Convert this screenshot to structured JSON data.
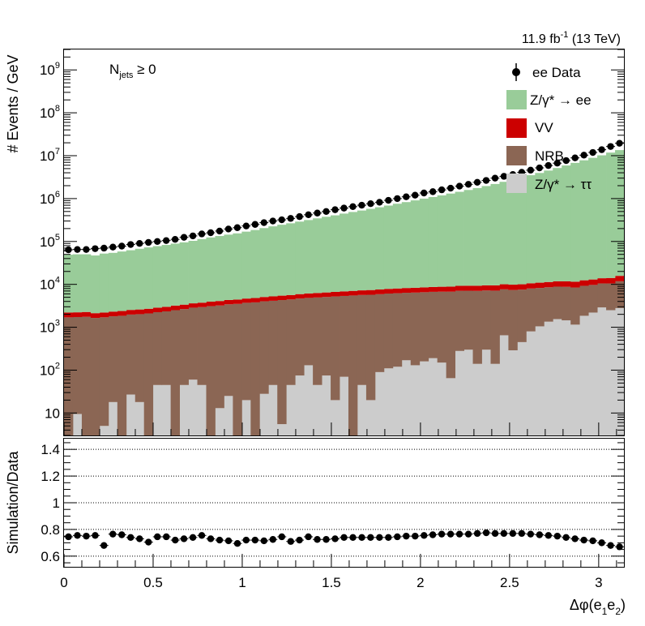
{
  "lumi_label": {
    "value": "11.9 fb",
    "sup": "-1",
    "tail": " (13 TeV)"
  },
  "selection_label": {
    "main": "N",
    "sub": "jets",
    "tail": " ≥ 0"
  },
  "legend": [
    {
      "key": "data",
      "label": "ee Data"
    },
    {
      "key": "dy_ee",
      "label": "Z/γ* → ee"
    },
    {
      "key": "vv",
      "label": "VV"
    },
    {
      "key": "nrb",
      "label": "NRB"
    },
    {
      "key": "dy_tautau",
      "label": "Z/γ* → ττ"
    }
  ],
  "chart_data": [
    {
      "type": "bar",
      "stacked": true,
      "ylabel": "# Events / GeV",
      "xlim": [
        0,
        3.1416
      ],
      "ylim": [
        3,
        3000000000
      ],
      "ylog": true,
      "y_ticks": [
        {
          "value": 10,
          "base": "10",
          "exp": ""
        },
        {
          "value": 100,
          "base": "10",
          "exp": "2"
        },
        {
          "value": 1000,
          "base": "10",
          "exp": "3"
        },
        {
          "value": 10000,
          "base": "10",
          "exp": "4"
        },
        {
          "value": 100000,
          "base": "10",
          "exp": "5"
        },
        {
          "value": 1000000,
          "base": "10",
          "exp": "6"
        },
        {
          "value": 10000000,
          "base": "10",
          "exp": "7"
        },
        {
          "value": 100000000,
          "base": "10",
          "exp": "8"
        },
        {
          "value": 1000000000,
          "base": "10",
          "exp": "9"
        }
      ],
      "n_bins": 63,
      "colors": {
        "dy_ee": "#99cc99",
        "vv": "#cc0000",
        "nrb": "#8b6654",
        "dy_tautau": "#cccccc",
        "data": "#000000"
      },
      "series": [
        {
          "key": "dy_tautau",
          "values": [
            0,
            9.5,
            0,
            0,
            5,
            18,
            0,
            27,
            18,
            0,
            45,
            45,
            0,
            45,
            60,
            45,
            0,
            13,
            25,
            0,
            20,
            0,
            28,
            45,
            5.5,
            45,
            75,
            130,
            45,
            75,
            20,
            70,
            0,
            45,
            20,
            90,
            110,
            120,
            170,
            130,
            160,
            190,
            150,
            65,
            280,
            300,
            140,
            300,
            140,
            650,
            290,
            450,
            800,
            1050,
            1350,
            1550,
            1450,
            1150,
            1850,
            2200,
            2900,
            2500,
            2800
          ]
        },
        {
          "key": "nrb",
          "values": [
            1700,
            1720,
            1750,
            1650,
            1700,
            1780,
            1850,
            1950,
            2000,
            2100,
            2200,
            2300,
            2500,
            2600,
            2800,
            2900,
            3100,
            3200,
            3400,
            3500,
            3700,
            3800,
            4000,
            4100,
            4300,
            4400,
            4600,
            4700,
            4900,
            5000,
            5200,
            5300,
            5500,
            5600,
            5700,
            5800,
            6000,
            6100,
            6200,
            6300,
            6400,
            6500,
            6600,
            6700,
            6800,
            6800,
            6900,
            6900,
            7000,
            7000,
            7100,
            7100,
            7200,
            7200,
            7200,
            7300,
            7300,
            7300,
            7400,
            7500,
            7600,
            8000,
            9000
          ]
        },
        {
          "key": "vv",
          "values": [
            500,
            500,
            520,
            480,
            500,
            520,
            540,
            560,
            580,
            600,
            620,
            650,
            700,
            720,
            750,
            800,
            850,
            880,
            900,
            920,
            950,
            1000,
            1050,
            1100,
            1150,
            1200,
            1250,
            1300,
            1350,
            1400,
            1450,
            1500,
            1550,
            1600,
            1650,
            1700,
            1750,
            1800,
            1850,
            1900,
            1950,
            2000,
            2050,
            2100,
            2150,
            2200,
            2250,
            2300,
            2350,
            2400,
            2450,
            2500,
            2600,
            2700,
            2800,
            2900,
            3000,
            3100,
            3200,
            3300,
            3400,
            3600,
            4000
          ]
        },
        {
          "key": "dy_ee",
          "values": [
            47000,
            48000,
            48000,
            45000,
            50000,
            52000,
            56000,
            60000,
            65000,
            70000,
            75000,
            80000,
            86000,
            92000,
            100000,
            110000,
            120000,
            130000,
            140000,
            150000,
            165000,
            180000,
            200000,
            220000,
            240000,
            260000,
            285000,
            310000,
            340000,
            370000,
            400000,
            440000,
            480000,
            520000,
            570000,
            620000,
            680000,
            750000,
            820000,
            900000,
            990000,
            1080000,
            1180000,
            1300000,
            1430000,
            1580000,
            1750000,
            1950000,
            2180000,
            2450000,
            2750000,
            3100000,
            3500000,
            3950000,
            4500000,
            5150000,
            5900000,
            6800000,
            7800000,
            8900000,
            10200000,
            11800000,
            13500000
          ]
        },
        {
          "key": "data",
          "values": [
            64000,
            65000,
            65000,
            68000,
            70000,
            74000,
            78000,
            85000,
            90000,
            95000,
            100000,
            105000,
            112000,
            125000,
            135000,
            150000,
            160000,
            175000,
            195000,
            210000,
            230000,
            250000,
            275000,
            300000,
            320000,
            345000,
            380000,
            420000,
            460000,
            500000,
            550000,
            600000,
            650000,
            700000,
            760000,
            820000,
            910000,
            1000000,
            1100000,
            1200000,
            1350000,
            1450000,
            1600000,
            1750000,
            1950000,
            2150000,
            2400000,
            2650000,
            3000000,
            3300000,
            3650000,
            4100000,
            4600000,
            5200000,
            5900000,
            6700000,
            7700000,
            8900000,
            10300000,
            11900000,
            13800000,
            16400000,
            19500000
          ]
        }
      ]
    },
    {
      "type": "scatter",
      "xlabel": {
        "main": "Δφ(e",
        "sub1": "1",
        "mid": "e",
        "sub2": "2",
        "tail": ")"
      },
      "ylabel": "Simulation/Data",
      "xlim": [
        0,
        3.1416
      ],
      "ylim": [
        0.52,
        1.48
      ],
      "x_ticks": [
        "0",
        "0.5",
        "1",
        "1.5",
        "2",
        "2.5",
        "3"
      ],
      "y_ticks": [
        "0.6",
        "0.8",
        "1",
        "1.2",
        "1.4"
      ],
      "grid_lines": [
        0.6,
        0.8,
        1.0,
        1.2,
        1.4
      ],
      "x": [
        0.025,
        0.075,
        0.125,
        0.175,
        0.224,
        0.274,
        0.324,
        0.374,
        0.424,
        0.474,
        0.524,
        0.574,
        0.624,
        0.673,
        0.723,
        0.773,
        0.823,
        0.873,
        0.923,
        0.973,
        1.022,
        1.072,
        1.122,
        1.172,
        1.222,
        1.272,
        1.321,
        1.371,
        1.421,
        1.471,
        1.521,
        1.571,
        1.621,
        1.671,
        1.72,
        1.77,
        1.82,
        1.87,
        1.92,
        1.97,
        2.02,
        2.069,
        2.119,
        2.169,
        2.219,
        2.269,
        2.319,
        2.369,
        2.419,
        2.468,
        2.518,
        2.568,
        2.618,
        2.668,
        2.718,
        2.768,
        2.817,
        2.867,
        2.917,
        2.967,
        3.017,
        3.067,
        3.117
      ],
      "y": [
        0.745,
        0.755,
        0.75,
        0.755,
        0.68,
        0.765,
        0.76,
        0.74,
        0.73,
        0.705,
        0.745,
        0.745,
        0.72,
        0.73,
        0.74,
        0.755,
        0.73,
        0.72,
        0.715,
        0.695,
        0.72,
        0.72,
        0.715,
        0.725,
        0.745,
        0.71,
        0.72,
        0.745,
        0.725,
        0.725,
        0.73,
        0.74,
        0.74,
        0.74,
        0.74,
        0.74,
        0.74,
        0.745,
        0.75,
        0.75,
        0.755,
        0.76,
        0.765,
        0.765,
        0.765,
        0.765,
        0.77,
        0.775,
        0.77,
        0.77,
        0.77,
        0.77,
        0.765,
        0.76,
        0.755,
        0.75,
        0.74,
        0.73,
        0.72,
        0.715,
        0.7,
        0.68,
        0.67
      ]
    }
  ]
}
